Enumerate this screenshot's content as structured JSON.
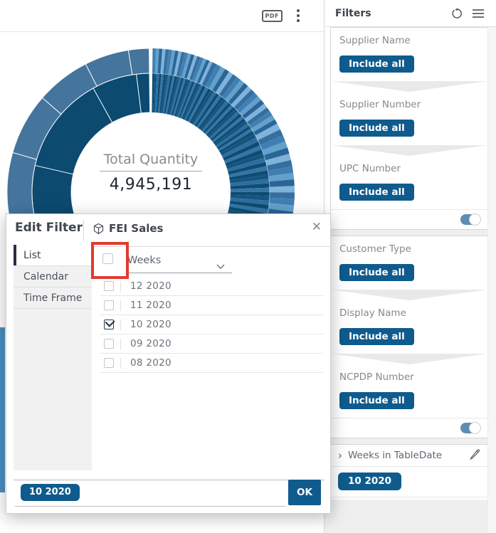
{
  "toolbar": {
    "pdf_label": "PDF"
  },
  "chart": {
    "title": "Total Quantity",
    "value": "4,945,191"
  },
  "icons": {
    "close": "✕",
    "chevron_right": "›"
  },
  "dialog": {
    "title": "Edit Filter",
    "dataset_name": "FEI Sales",
    "tabs": [
      {
        "label": "List",
        "selected": true
      },
      {
        "label": "Calendar",
        "selected": false
      },
      {
        "label": "Time Frame",
        "selected": false
      }
    ],
    "attribute_label": "Weeks",
    "items": [
      {
        "label": "12 2020",
        "checked": false
      },
      {
        "label": "11 2020",
        "checked": false
      },
      {
        "label": "10 2020",
        "checked": true
      },
      {
        "label": "09 2020",
        "checked": false
      },
      {
        "label": "08 2020",
        "checked": false
      }
    ],
    "selection_chip": "10 2020",
    "ok_label": "OK"
  },
  "filters": {
    "title": "Filters",
    "include_all_label": "Include all",
    "groups": [
      {
        "sections": [
          {
            "label": "Supplier Name"
          },
          {
            "label": "Supplier Number"
          },
          {
            "label": "UPC Number"
          }
        ],
        "toggle_on": true
      },
      {
        "sections": [
          {
            "label": "Customer Type"
          },
          {
            "label": "Display Name"
          },
          {
            "label": "NCPDP Number"
          }
        ],
        "toggle_on": true
      }
    ],
    "date_filter": {
      "header": "Weeks in TableDate",
      "chip": "10 2020",
      "toggle_on": true
    }
  },
  "colors": {
    "primary_blue": "#0F5B8D",
    "toggle_blue": "#5D8DB5",
    "annotation_red": "#E23A30",
    "donut_dark": "#0C4A70",
    "donut_steel": "#45749D"
  }
}
